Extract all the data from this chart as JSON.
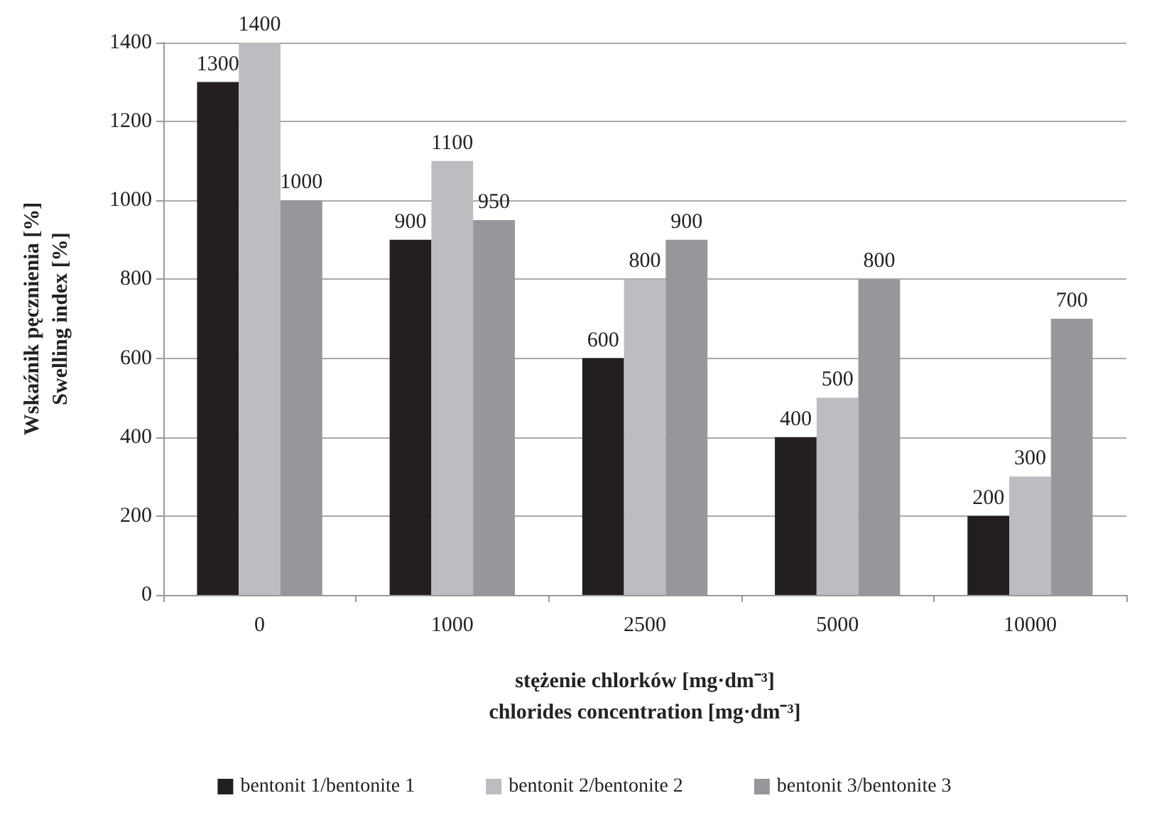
{
  "chart_data": {
    "type": "bar",
    "xlabel": "stężenie chlorków [mg·dm⁻³]\nchlorides concentration [mg·dm⁻³]",
    "ylabel": "Wskaźnik pęcznienia [%]\nSwelling index [%]",
    "categories": [
      "0",
      "1000",
      "2500",
      "5000",
      "10000"
    ],
    "series": [
      {
        "name": "bentonit 1/bentonite 1",
        "color": "#231f20",
        "values": [
          1300,
          900,
          600,
          400,
          200
        ]
      },
      {
        "name": "bentonit 2/bentonite 2",
        "color": "#bcbdc0",
        "values": [
          1400,
          1100,
          800,
          500,
          300
        ]
      },
      {
        "name": "bentonit 3/bentonite 3",
        "color": "#96979b",
        "values": [
          1000,
          950,
          900,
          800,
          700
        ]
      }
    ],
    "ylim": [
      0,
      1400
    ],
    "yticks": [
      0,
      200,
      400,
      600,
      800,
      1000,
      1200,
      1400
    ],
    "grid": "y",
    "legend": "bottom",
    "data_labels": true
  }
}
